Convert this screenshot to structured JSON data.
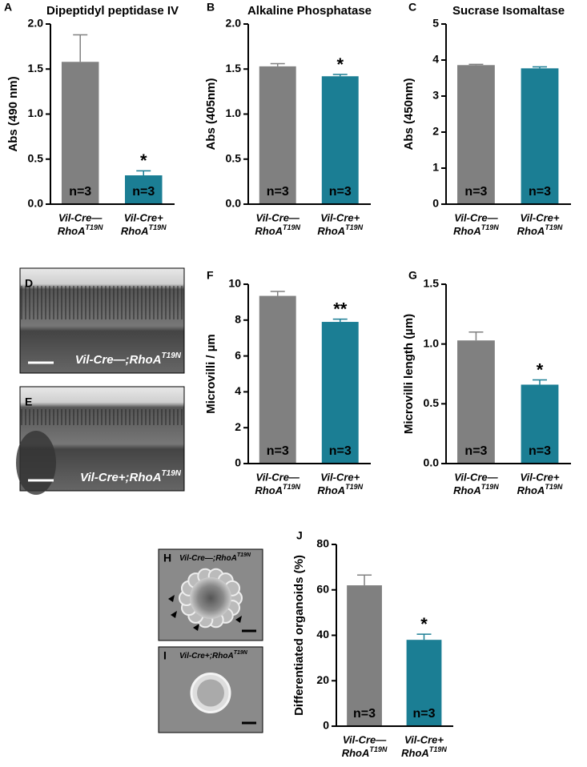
{
  "strain": {
    "gene": "RhoA",
    "allele": "T19N"
  },
  "chart_data": [
    {
      "type": "bar",
      "panel": "A",
      "title": "Dipeptidyl peptidase IV",
      "y_label": "Abs (490 nm)",
      "categories": [
        "Vil-Cre—",
        "Vil-Cre+"
      ],
      "values": [
        1.58,
        0.32
      ],
      "errors": [
        0.3,
        0.05
      ],
      "colors": [
        "#808080",
        "#1b7e94"
      ],
      "n_labels": [
        "n=3",
        "n=3"
      ],
      "significance": [
        null,
        "*"
      ],
      "ylim": [
        0,
        2
      ],
      "yticks": [
        {
          "value": 0,
          "label": "0.0"
        },
        {
          "value": 0.5,
          "label": "0.5"
        },
        {
          "value": 1,
          "label": "1.0"
        },
        {
          "value": 1.5,
          "label": "1.5"
        },
        {
          "value": 2,
          "label": "2.0"
        }
      ]
    },
    {
      "type": "bar",
      "panel": "B",
      "title": "Alkaline Phosphatase",
      "y_label": "Abs (405nm)",
      "categories": [
        "Vil-Cre—",
        "Vil-Cre+"
      ],
      "values": [
        1.53,
        1.42
      ],
      "errors": [
        0.03,
        0.02
      ],
      "colors": [
        "#808080",
        "#1b7e94"
      ],
      "n_labels": [
        "n=3",
        "n=3"
      ],
      "significance": [
        null,
        "*"
      ],
      "ylim": [
        0,
        2
      ],
      "yticks": [
        {
          "value": 0,
          "label": "0.0"
        },
        {
          "value": 0.5,
          "label": "0.5"
        },
        {
          "value": 1,
          "label": "1.0"
        },
        {
          "value": 1.5,
          "label": "1.5"
        },
        {
          "value": 2,
          "label": "2.0"
        }
      ]
    },
    {
      "type": "bar",
      "panel": "C",
      "title": "Sucrase Isomaltase",
      "y_label": "Abs (450nm)",
      "categories": [
        "Vil-Cre—",
        "Vil-Cre+"
      ],
      "values": [
        3.86,
        3.77
      ],
      "errors": [
        0.02,
        0.04
      ],
      "colors": [
        "#808080",
        "#1b7e94"
      ],
      "n_labels": [
        "n=3",
        "n=3"
      ],
      "significance": [
        null,
        null
      ],
      "ylim": [
        0,
        5
      ],
      "yticks": [
        0,
        1,
        2,
        3,
        4,
        5
      ]
    },
    {
      "type": "bar",
      "panel": "F",
      "y_label": "Microvilli / µm",
      "categories": [
        "Vil-Cre—",
        "Vil-Cre+"
      ],
      "values": [
        9.35,
        7.9
      ],
      "errors": [
        0.25,
        0.15
      ],
      "colors": [
        "#808080",
        "#1b7e94"
      ],
      "n_labels": [
        "n=3",
        "n=3"
      ],
      "significance": [
        null,
        "**"
      ],
      "ylim": [
        0,
        10
      ],
      "yticks": [
        0,
        2,
        4,
        6,
        8,
        10
      ]
    },
    {
      "type": "bar",
      "panel": "G",
      "y_label": "Microvilli length (µm)",
      "categories": [
        "Vil-Cre—",
        "Vil-Cre+"
      ],
      "values": [
        1.03,
        0.66
      ],
      "errors": [
        0.07,
        0.04
      ],
      "colors": [
        "#808080",
        "#1b7e94"
      ],
      "n_labels": [
        "n=3",
        "n=3"
      ],
      "significance": [
        null,
        "*"
      ],
      "ylim": [
        0,
        1.5
      ],
      "yticks": [
        {
          "value": 0,
          "label": "0.0"
        },
        {
          "value": 0.5,
          "label": "0.5"
        },
        {
          "value": 1,
          "label": "1.0"
        },
        {
          "value": 1.5,
          "label": "1.5"
        }
      ]
    },
    {
      "type": "bar",
      "panel": "J",
      "y_label": "Differentiated organoids (%)",
      "categories": [
        "Vil-Cre—",
        "Vil-Cre+"
      ],
      "values": [
        62,
        38
      ],
      "errors": [
        4.5,
        2.5
      ],
      "colors": [
        "#808080",
        "#1b7e94"
      ],
      "n_labels": [
        "n=3",
        "n=3"
      ],
      "significance": [
        null,
        "*"
      ],
      "ylim": [
        0,
        80
      ],
      "yticks": [
        0,
        20,
        40,
        60,
        80
      ]
    }
  ],
  "images": [
    {
      "panel": "D",
      "label": "Vil-Cre—;RhoA",
      "sup": "T19N"
    },
    {
      "panel": "E",
      "label": "Vil-Cre+;RhoA",
      "sup": "T19N"
    },
    {
      "panel": "H",
      "label": "Vil-Cre—;RhoA",
      "sup": "T19N"
    },
    {
      "panel": "I",
      "label": "Vil-Cre+;RhoA",
      "sup": "T19N"
    }
  ]
}
